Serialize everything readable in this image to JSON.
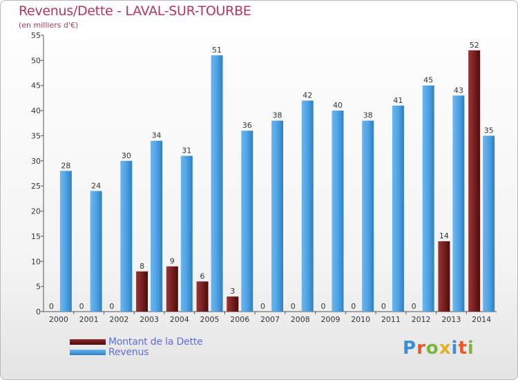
{
  "header": {
    "title": "Revenus/Dette - LAVAL-SUR-TOURBE",
    "subtitle": "(en milliers d'€)"
  },
  "logo": {
    "text": "Proxiti",
    "letter_colors": [
      "#3a8fd6",
      "#e8582b",
      "#7ab63a",
      "#e1b21f",
      "#3a8fd6",
      "#e8582b",
      "#7ab63a"
    ]
  },
  "colors": {
    "dette": "#7a1f20",
    "revenus": "#4fa3e3",
    "title": "#b5385a",
    "legend_text": "#5b6ee0"
  },
  "chart_data": {
    "type": "bar",
    "categories": [
      "2000",
      "2001",
      "2002",
      "2003",
      "2004",
      "2005",
      "2006",
      "2007",
      "2008",
      "2009",
      "2010",
      "2011",
      "2012",
      "2013",
      "2014"
    ],
    "series": [
      {
        "name": "Montant de la Dette",
        "values": [
          0,
          0,
          0,
          8,
          9,
          6,
          3,
          0,
          0,
          0,
          0,
          0,
          0,
          14,
          52
        ]
      },
      {
        "name": "Revenus",
        "values": [
          28,
          24,
          30,
          34,
          31,
          51,
          36,
          38,
          42,
          40,
          38,
          41,
          45,
          43,
          35
        ]
      }
    ],
    "ylim": [
      0,
      55
    ],
    "yticks": [
      0,
      5,
      10,
      15,
      20,
      25,
      30,
      35,
      40,
      45,
      50,
      55
    ],
    "grid": false,
    "legend_position": "bottom-left"
  }
}
